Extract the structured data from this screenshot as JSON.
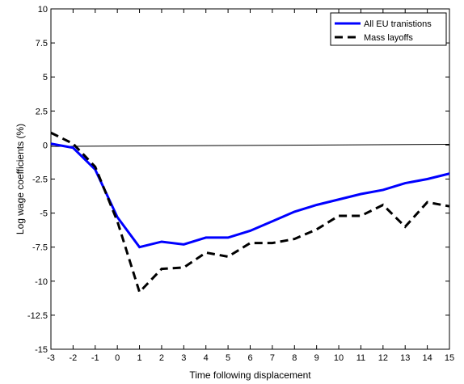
{
  "chart_data": {
    "type": "line",
    "title": "",
    "xlabel": "Time following displacement",
    "ylabel": "Log wage coefficients (%)",
    "xlim": [
      -3,
      15
    ],
    "ylim": [
      -15,
      10
    ],
    "grid": false,
    "legend_position": "top-right",
    "x": [
      -3,
      -2,
      -1,
      0,
      1,
      2,
      3,
      4,
      5,
      6,
      7,
      8,
      9,
      10,
      11,
      12,
      13,
      14,
      15
    ],
    "x_ticks": [
      "-3",
      "-2",
      "-1",
      "0",
      "1",
      "2",
      "3",
      "4",
      "5",
      "6",
      "7",
      "8",
      "9",
      "10",
      "11",
      "12",
      "13",
      "14",
      "15"
    ],
    "y_ticks": [
      "10",
      "7.5",
      "5",
      "2.5",
      "0",
      "-2.5",
      "-5",
      "-7.5",
      "-10",
      "-12.5",
      "-15"
    ],
    "y_tick_values": [
      10,
      7.5,
      5,
      2.5,
      0,
      -2.5,
      -5,
      -7.5,
      -10,
      -12.5,
      -15
    ],
    "reference_line": {
      "x": [
        -3,
        15
      ],
      "y": [
        -0.1,
        0.05
      ],
      "color": "#000000"
    },
    "series": [
      {
        "name": "All EU tranistions",
        "color": "#0000ff",
        "style": "solid",
        "values": [
          0.1,
          -0.2,
          -1.8,
          -5.3,
          -7.5,
          -7.1,
          -7.3,
          -6.8,
          -6.8,
          -6.3,
          -5.6,
          -4.9,
          -4.4,
          -4.0,
          -3.6,
          -3.3,
          -2.8,
          -2.5,
          -2.1
        ]
      },
      {
        "name": "Mass layoffs",
        "color": "#000000",
        "style": "dashed",
        "values": [
          0.9,
          0.1,
          -1.6,
          -5.6,
          -10.8,
          -9.1,
          -9.0,
          -7.9,
          -8.2,
          -7.2,
          -7.2,
          -6.9,
          -6.2,
          -5.2,
          -5.2,
          -4.4,
          -6.0,
          -4.2,
          -4.5
        ]
      }
    ]
  }
}
